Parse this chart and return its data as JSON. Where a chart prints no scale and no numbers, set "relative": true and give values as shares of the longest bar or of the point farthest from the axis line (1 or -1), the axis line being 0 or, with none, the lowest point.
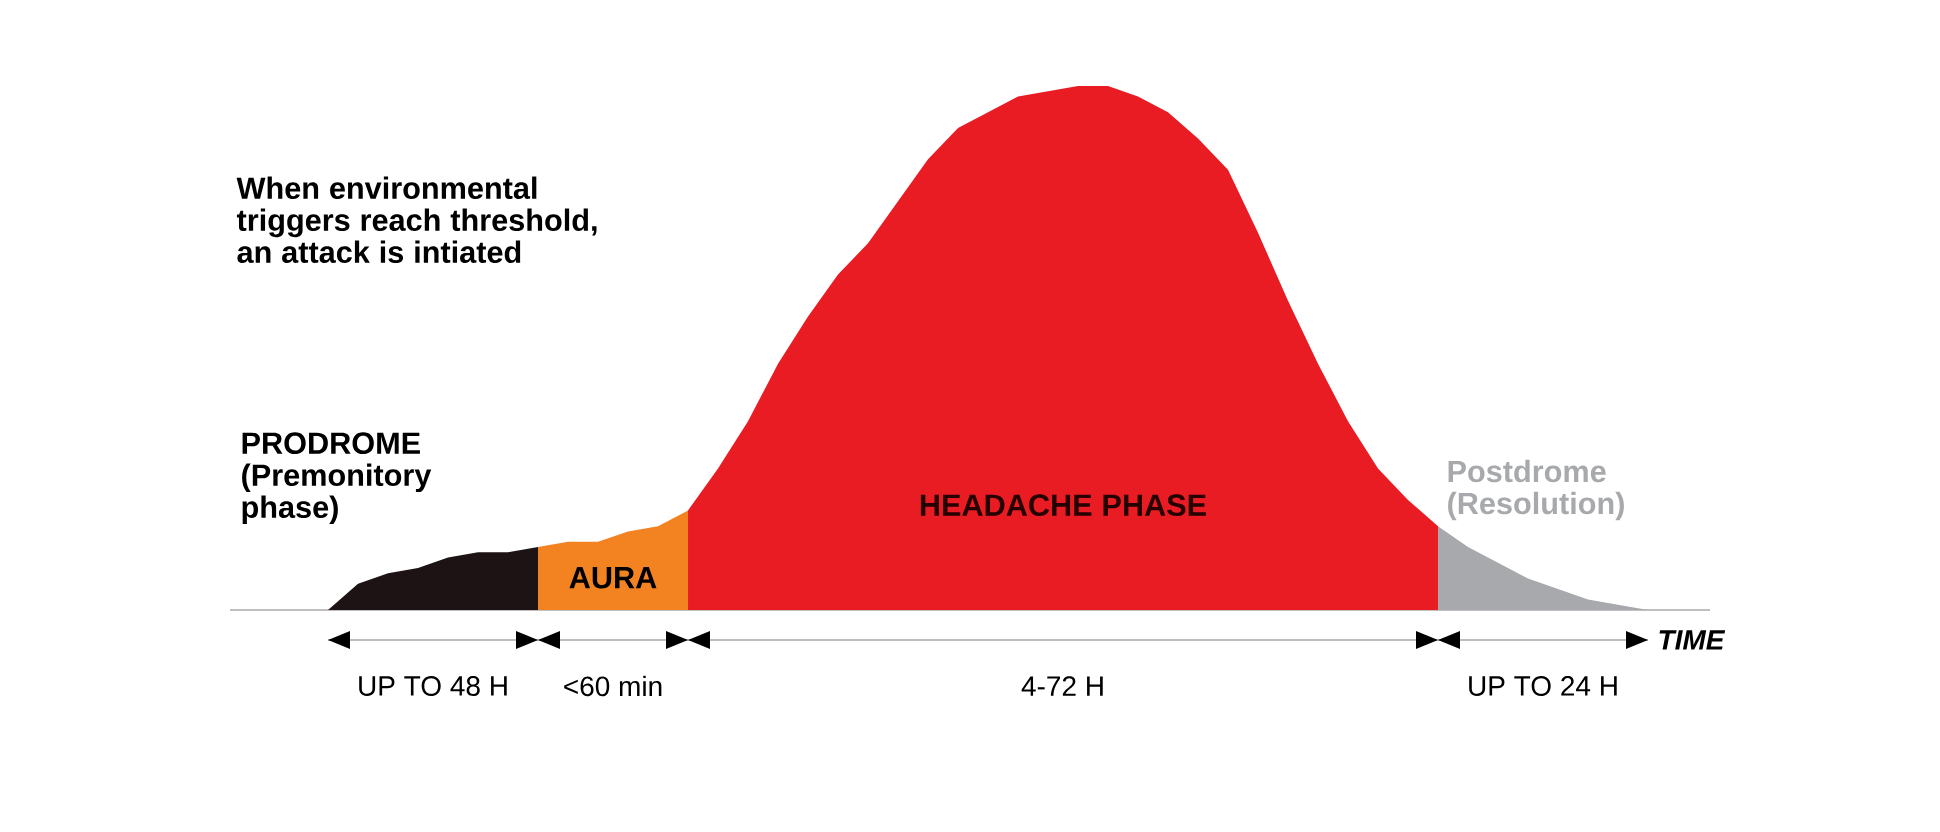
{
  "chart_data": {
    "type": "area",
    "relative": true,
    "categories": [
      null,
      null,
      null,
      null,
      null,
      null,
      null,
      null,
      null,
      null,
      null,
      null,
      null,
      null,
      null,
      null,
      null,
      null,
      null,
      null,
      null,
      null,
      null,
      null,
      null,
      null,
      null,
      null,
      null,
      null,
      null,
      null,
      null,
      null,
      null,
      null,
      null,
      null,
      null,
      null,
      null,
      null,
      null,
      null,
      null
    ],
    "xlabel": "TIME",
    "annotations": [
      "When environmental triggers reach threshold, an attack is intiated",
      "UP TO 48 H",
      "<60 min",
      "4-72 H",
      "UP TO 24 H"
    ],
    "series": [
      {
        "name": "PRODROME (Premonitory phase)",
        "color": "#1e1314",
        "values": [
          0,
          0.05,
          0.07,
          0.08,
          0.1,
          0.11,
          0.11,
          0.12,
          null,
          null,
          null,
          null,
          null,
          null,
          null,
          null,
          null,
          null,
          null,
          null,
          null,
          null,
          null,
          null,
          null,
          null,
          null,
          null,
          null,
          null,
          null,
          null,
          null,
          null,
          null,
          null,
          null,
          null,
          null,
          null,
          null,
          null,
          null,
          null,
          null
        ]
      },
      {
        "name": "AURA",
        "color": "#f38320",
        "values": [
          null,
          null,
          null,
          null,
          null,
          null,
          null,
          0.12,
          0.13,
          0.13,
          0.15,
          0.16,
          0.19,
          null,
          null,
          null,
          null,
          null,
          null,
          null,
          null,
          null,
          null,
          null,
          null,
          null,
          null,
          null,
          null,
          null,
          null,
          null,
          null,
          null,
          null,
          null,
          null,
          null,
          null,
          null,
          null,
          null,
          null,
          null,
          null
        ]
      },
      {
        "name": "HEADACHE PHASE",
        "color": "#e91c24",
        "values": [
          null,
          null,
          null,
          null,
          null,
          null,
          null,
          null,
          null,
          null,
          null,
          null,
          0.19,
          0.27,
          0.36,
          0.47,
          0.56,
          0.64,
          0.7,
          0.78,
          0.86,
          0.92,
          0.95,
          0.98,
          0.99,
          1,
          1,
          0.98,
          0.95,
          0.9,
          0.84,
          0.72,
          0.59,
          0.47,
          0.36,
          0.27,
          0.21,
          0.16,
          null,
          null,
          null,
          null,
          null,
          null,
          null
        ]
      },
      {
        "name": "Postdrome (Resolution)",
        "color": "#a7a9ac",
        "values": [
          null,
          null,
          null,
          null,
          null,
          null,
          null,
          null,
          null,
          null,
          null,
          null,
          null,
          null,
          null,
          null,
          null,
          null,
          null,
          null,
          null,
          null,
          null,
          null,
          null,
          null,
          null,
          null,
          null,
          null,
          null,
          null,
          null,
          null,
          null,
          null,
          null,
          0.16,
          0.12,
          0.09,
          0.06,
          0.04,
          0.02,
          0.01,
          0
        ]
      }
    ]
  }
}
